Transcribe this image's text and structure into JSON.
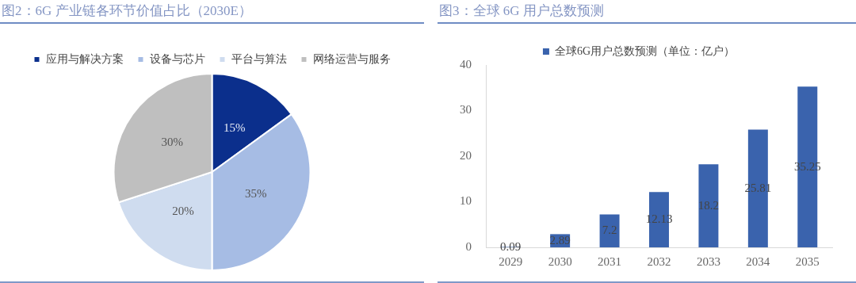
{
  "chart_data": [
    {
      "type": "pie",
      "title": "图2：6G 产业链各环节价值占比（2030E）",
      "categories": [
        "应用与解决方案",
        "设备与芯片",
        "平台与算法",
        "网络运营与服务"
      ],
      "values": [
        15,
        35,
        20,
        30
      ],
      "colors": [
        "#0b2f8c",
        "#a6bce4",
        "#cfdcef",
        "#bfbfbf"
      ],
      "value_labels": [
        "15%",
        "35%",
        "20%",
        "30%"
      ],
      "legend": "top"
    },
    {
      "type": "bar",
      "title": "图3：全球 6G 用户总数预测",
      "categories": [
        "2029",
        "2030",
        "2031",
        "2032",
        "2033",
        "2034",
        "2035"
      ],
      "series": [
        {
          "name": "全球6G用户总数预测（单位：亿户）",
          "color": "#3a63ad",
          "values": [
            0.09,
            2.89,
            7.2,
            12.13,
            18.2,
            25.81,
            35.25
          ]
        }
      ],
      "ylim": [
        0,
        40
      ],
      "yticks": [
        0,
        10,
        20,
        30,
        40
      ],
      "data_labels": true,
      "grid": false,
      "legend": "top"
    }
  ]
}
